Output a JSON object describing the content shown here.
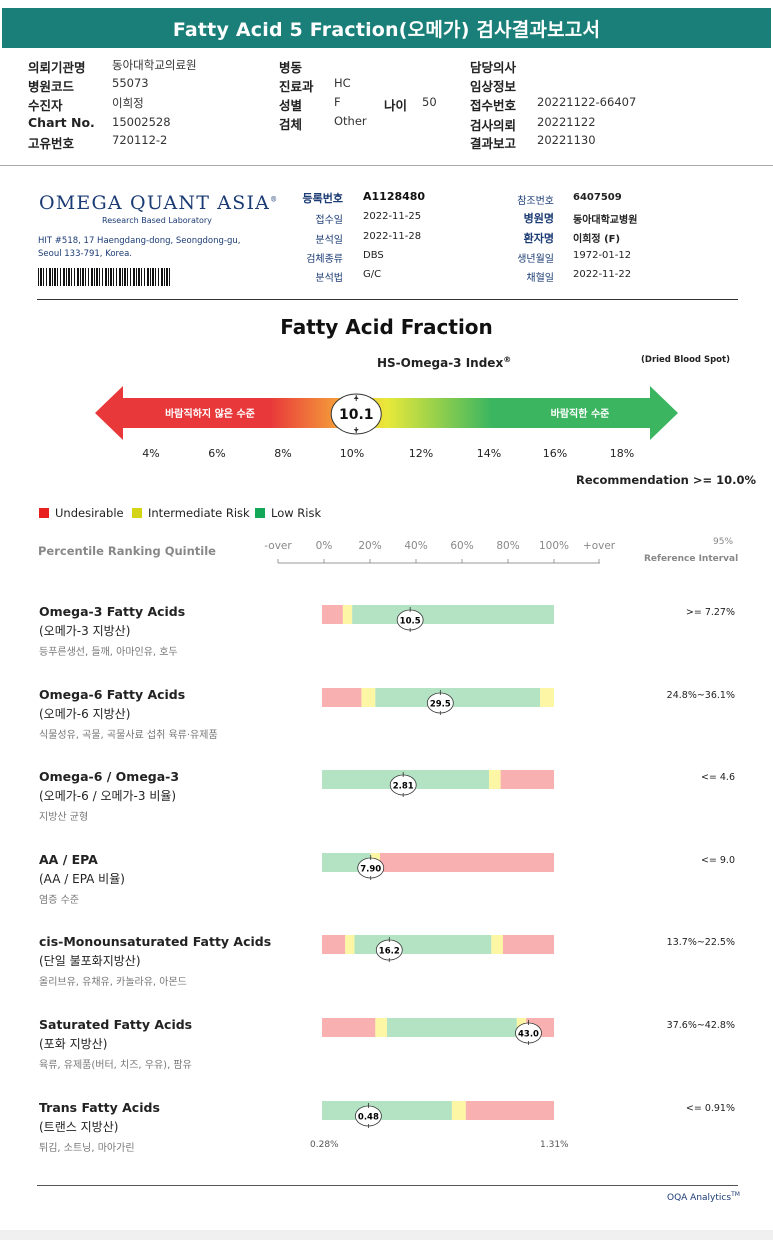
{
  "report": {
    "title": "Fatty Acid 5 Fraction(오메가) 검사결과보고서"
  },
  "header_left": [
    {
      "label": "의뢰기관명",
      "value": "동아대학교의료원"
    },
    {
      "label": "병원코드",
      "value": "55073"
    },
    {
      "label": "수진자",
      "value": "이희정"
    },
    {
      "label": "Chart No.",
      "value": "15002528"
    },
    {
      "label": "고유번호",
      "value": "720112-2"
    }
  ],
  "header_mid": [
    {
      "label": "병동",
      "value": ""
    },
    {
      "label": "진료과",
      "value": "HC"
    },
    {
      "label": "성별",
      "value": "F"
    },
    {
      "label": "검체",
      "value": "Other"
    }
  ],
  "header_age": {
    "label": "나이",
    "value": "50"
  },
  "header_right": [
    {
      "label": "담당의사",
      "value": ""
    },
    {
      "label": "임상정보",
      "value": ""
    },
    {
      "label": "접수번호",
      "value": "20221122-66407"
    },
    {
      "label": "검사의뢰",
      "value": "20221122"
    },
    {
      "label": "결과보고",
      "value": "20221130"
    }
  ],
  "lab": {
    "logo": "OMEGA QUANT ASIA",
    "logo_mark": "®",
    "subtitle": "Research Based Laboratory",
    "address_line1": "HIT #518, 17 Haengdang-dong, Seongdong-gu,",
    "address_line2": "Seoul 133-791, Korea."
  },
  "sample_info_left": [
    {
      "label": "등록번호",
      "value": "A1128480",
      "bold": true
    },
    {
      "label": "접수일",
      "value": "2022-11-25"
    },
    {
      "label": "분석일",
      "value": "2022-11-28"
    },
    {
      "label": "검체종류",
      "value": "DBS"
    },
    {
      "label": "분석법",
      "value": "G/C"
    }
  ],
  "sample_info_right": [
    {
      "label": "참조번호",
      "value": "6407509"
    },
    {
      "label": "병원명",
      "value": "동아대학교병원",
      "bold": true
    },
    {
      "label": "환자명",
      "value": "이희정 (F)",
      "bold": true
    },
    {
      "label": "생년월일",
      "value": "1972-01-12"
    },
    {
      "label": "채혈일",
      "value": "2022-11-22"
    }
  ],
  "section": {
    "title": "Fatty Acid Fraction",
    "index_title": "HS-Omega-3 Index",
    "index_mark": "®",
    "specimen": "(Dried Blood Spot)"
  },
  "omega_index": {
    "value": "10.1",
    "value_num": 10.1,
    "left_label": "바람직하지 않은 수준",
    "right_label": "바람직한 수준",
    "ticks": [
      "4%",
      "6%",
      "8%",
      "10%",
      "12%",
      "14%",
      "16%",
      "18%"
    ],
    "recommendation": "Recommendation  >= 10.0%",
    "colors": {
      "red": "#e8383a",
      "orange": "#f5a03a",
      "yellow": "#e9e93a",
      "green": "#3bb560"
    }
  },
  "legend": [
    {
      "label": "Undesirable",
      "color": "#e8201f"
    },
    {
      "label": "Intermediate Risk",
      "color": "#d4d417"
    },
    {
      "label": "Low Risk",
      "color": "#13a858"
    }
  ],
  "percentile": {
    "title": "Percentile Ranking Quintile",
    "ticks": [
      "-over",
      "0%",
      "20%",
      "40%",
      "60%",
      "80%",
      "100%",
      "+over"
    ],
    "ref_95": "95%",
    "ref_label": "Reference Interval"
  },
  "rows": [
    {
      "name": "Omega-3 Fatty Acids",
      "kor": "(오메가-3 지방산)",
      "sub": "등푸른생선, 들깨, 아마인유, 호두",
      "ref": ">= 7.27%",
      "value": "10.5",
      "marker": 0.38,
      "segments": [
        {
          "from": 0,
          "to": 0.09,
          "c": "red"
        },
        {
          "from": 0.09,
          "to": 0.13,
          "c": "yellow"
        },
        {
          "from": 0.13,
          "to": 1.0,
          "c": "green"
        }
      ]
    },
    {
      "name": "Omega-6 Fatty Acids",
      "kor": "(오메가-6 지방산)",
      "sub": "식물성유, 곡물, 곡물사료 섭취 육류·유제품",
      "ref": "24.8%~36.1%",
      "value": "29.5",
      "marker": 0.51,
      "segments": [
        {
          "from": 0,
          "to": 0.17,
          "c": "red"
        },
        {
          "from": 0.17,
          "to": 0.23,
          "c": "yellow"
        },
        {
          "from": 0.23,
          "to": 0.94,
          "c": "green"
        },
        {
          "from": 0.94,
          "to": 1.0,
          "c": "yellow"
        }
      ]
    },
    {
      "name": "Omega-6 / Omega-3",
      "kor": "(오메가-6 / 오메가-3 비율)",
      "sub": "지방산 균형",
      "ref": "<= 4.6",
      "value": "2.81",
      "marker": 0.35,
      "segments": [
        {
          "from": 0,
          "to": 0.72,
          "c": "green"
        },
        {
          "from": 0.72,
          "to": 0.77,
          "c": "yellow"
        },
        {
          "from": 0.77,
          "to": 1.0,
          "c": "red"
        }
      ]
    },
    {
      "name": "AA / EPA",
      "kor": "(AA / EPA 비율)",
      "sub": "염증 수준",
      "ref": "<= 9.0",
      "value": "7.90",
      "marker": 0.21,
      "segments": [
        {
          "from": 0,
          "to": 0.21,
          "c": "green"
        },
        {
          "from": 0.21,
          "to": 0.25,
          "c": "yellow"
        },
        {
          "from": 0.25,
          "to": 1.0,
          "c": "red"
        }
      ]
    },
    {
      "name": "cis-Monounsaturated Fatty Acids",
      "kor": "(단일 불포화지방산)",
      "sub": "올리브유, 유채유, 카놀라유, 아몬드",
      "ref": "13.7%~22.5%",
      "value": "16.2",
      "marker": 0.29,
      "segments": [
        {
          "from": 0,
          "to": 0.1,
          "c": "red"
        },
        {
          "from": 0.1,
          "to": 0.14,
          "c": "yellow"
        },
        {
          "from": 0.14,
          "to": 0.73,
          "c": "green"
        },
        {
          "from": 0.73,
          "to": 0.78,
          "c": "yellow"
        },
        {
          "from": 0.78,
          "to": 1.0,
          "c": "red"
        }
      ]
    },
    {
      "name": "Saturated Fatty Acids",
      "kor": "(포화 지방산)",
      "sub": "육류, 유제품(버터, 치즈, 우유), 팜유",
      "ref": "37.6%~42.8%",
      "value": "43.0",
      "marker": 0.89,
      "segments": [
        {
          "from": 0,
          "to": 0.23,
          "c": "red"
        },
        {
          "from": 0.23,
          "to": 0.28,
          "c": "yellow"
        },
        {
          "from": 0.28,
          "to": 0.84,
          "c": "green"
        },
        {
          "from": 0.84,
          "to": 0.88,
          "c": "yellow"
        },
        {
          "from": 0.88,
          "to": 1.0,
          "c": "red"
        }
      ]
    },
    {
      "name": "Trans Fatty Acids",
      "kor": "(트랜스 지방산)",
      "sub": "튀김, 소트닝, 마아가린",
      "ref": "<= 0.91%",
      "value": "0.48",
      "marker": 0.2,
      "segments": [
        {
          "from": 0,
          "to": 0.56,
          "c": "green"
        },
        {
          "from": 0.56,
          "to": 0.62,
          "c": "yellow"
        },
        {
          "from": 0.62,
          "to": 1.0,
          "c": "red"
        }
      ]
    }
  ],
  "trans_range": {
    "min": "0.28%",
    "max": "1.31%"
  },
  "bar_colors": {
    "red": "#f8b0b0",
    "yellow": "#fdf6a5",
    "green": "#b3e3c3"
  },
  "footer": {
    "brand": "OQA Analytics",
    "mark": "TM"
  }
}
